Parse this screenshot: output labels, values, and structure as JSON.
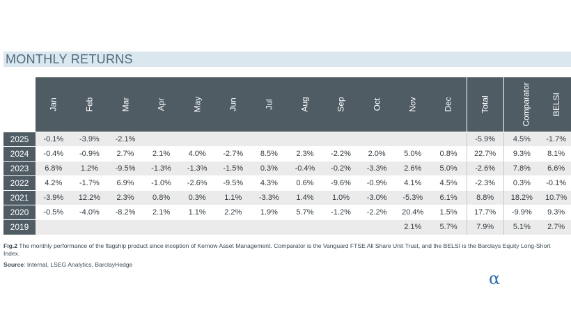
{
  "section_title": "MONTHLY RETURNS",
  "table": {
    "columns": [
      "Jan",
      "Feb",
      "Mar",
      "Apr",
      "May",
      "Jun",
      "Jul",
      "Aug",
      "Sep",
      "Oct",
      "Nov",
      "Dec",
      "Total",
      "Comparator",
      "BELSI"
    ],
    "rows": [
      {
        "year": "2025",
        "values": [
          "-0.1%",
          "-3.9%",
          "-2.1%",
          "",
          "",
          "",
          "",
          "",
          "",
          "",
          "",
          "",
          "-5.9%",
          "4.5%",
          "-1.7%"
        ]
      },
      {
        "year": "2024",
        "values": [
          "-0.4%",
          "-0.9%",
          "2.7%",
          "2.1%",
          "4.0%",
          "-2.7%",
          "8.5%",
          "2.3%",
          "-2.2%",
          "2.0%",
          "5.0%",
          "0.8%",
          "22.7%",
          "9.3%",
          "8.1%"
        ]
      },
      {
        "year": "2023",
        "values": [
          "6.8%",
          "1.2%",
          "-9.5%",
          "-1.3%",
          "-1.3%",
          "-1.5%",
          "0.3%",
          "-0.4%",
          "-0.2%",
          "-3.3%",
          "2.6%",
          "5.0%",
          "-2.6%",
          "7.8%",
          "6.6%"
        ]
      },
      {
        "year": "2022",
        "values": [
          "4.2%",
          "-1.7%",
          "6.9%",
          "-1.0%",
          "-2.6%",
          "-9.5%",
          "4.3%",
          "0.6%",
          "-9.6%",
          "-0.9%",
          "4.1%",
          "4.5%",
          "-2.3%",
          "0.3%",
          "-0.1%"
        ]
      },
      {
        "year": "2021",
        "values": [
          "-3.9%",
          "12.2%",
          "2.3%",
          "0.8%",
          "0.3%",
          "1.1%",
          "-3.3%",
          "1.4%",
          "1.0%",
          "-3.0%",
          "-5.3%",
          "6.1%",
          "8.8%",
          "18.2%",
          "10.7%"
        ]
      },
      {
        "year": "2020",
        "values": [
          "-0.5%",
          "-4.0%",
          "-8.2%",
          "2.1%",
          "1.1%",
          "2.2%",
          "1.9%",
          "5.7%",
          "-1.2%",
          "-2.2%",
          "20.4%",
          "1.5%",
          "17.7%",
          "-9.9%",
          "9.3%"
        ]
      },
      {
        "year": "2019",
        "values": [
          "",
          "",
          "",
          "",
          "",
          "",
          "",
          "",
          "",
          "",
          "2.1%",
          "5.7%",
          "7.9%",
          "5.1%",
          "2.7%"
        ]
      }
    ]
  },
  "caption": {
    "fig_label": "Fig.2",
    "text": " The monthly performance of the flagship product since inception of Kernow Asset Management. Comparator is the Vanguard FTSE All Share Unit Trust, and the BELSI is the Barclays Equity Long-Short Index."
  },
  "source": {
    "label": "Source",
    "text": ": Internal, LSEG Analytics, BarclayHedge"
  },
  "logo": {
    "glyph": "α"
  },
  "colors": {
    "header_bg": "#4f5c63",
    "section_bg": "#dbe7ef",
    "row_alt_bg": "#ebebeb",
    "logo_color": "#2f6fb5"
  }
}
